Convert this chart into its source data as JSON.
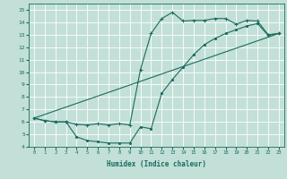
{
  "xlabel": "Humidex (Indice chaleur)",
  "xlim": [
    -0.5,
    23.5
  ],
  "ylim": [
    4,
    15.5
  ],
  "xticks": [
    0,
    1,
    2,
    3,
    4,
    5,
    6,
    7,
    8,
    9,
    10,
    11,
    12,
    13,
    14,
    15,
    16,
    17,
    18,
    19,
    20,
    21,
    22,
    23
  ],
  "yticks": [
    4,
    5,
    6,
    7,
    8,
    9,
    10,
    11,
    12,
    13,
    14,
    15
  ],
  "bg_color": "#c2e0d8",
  "line_color": "#1a6b5e",
  "grid_color": "#b0d8cc",
  "line1_x": [
    0,
    1,
    2,
    3,
    4,
    5,
    6,
    7,
    8,
    9,
    10,
    11,
    12,
    13,
    14,
    15,
    16,
    17,
    18,
    19,
    20,
    21,
    22,
    23
  ],
  "line1_y": [
    6.3,
    6.1,
    6.0,
    6.0,
    5.8,
    5.75,
    5.85,
    5.75,
    5.85,
    5.75,
    10.2,
    13.1,
    14.3,
    14.8,
    14.1,
    14.15,
    14.15,
    14.3,
    14.3,
    13.85,
    14.15,
    14.1,
    13.0,
    13.1
  ],
  "line2_x": [
    0,
    1,
    2,
    3,
    4,
    5,
    6,
    7,
    8,
    9,
    10,
    11,
    12,
    13,
    14,
    15,
    16,
    17,
    18,
    19,
    20,
    21,
    22,
    23
  ],
  "line2_y": [
    6.3,
    6.1,
    6.0,
    6.0,
    4.8,
    4.5,
    4.4,
    4.3,
    4.3,
    4.3,
    5.6,
    5.45,
    8.3,
    9.4,
    10.4,
    11.4,
    12.2,
    12.7,
    13.1,
    13.4,
    13.7,
    13.9,
    12.95,
    13.1
  ],
  "line3_x": [
    0,
    23
  ],
  "line3_y": [
    6.3,
    13.1
  ]
}
